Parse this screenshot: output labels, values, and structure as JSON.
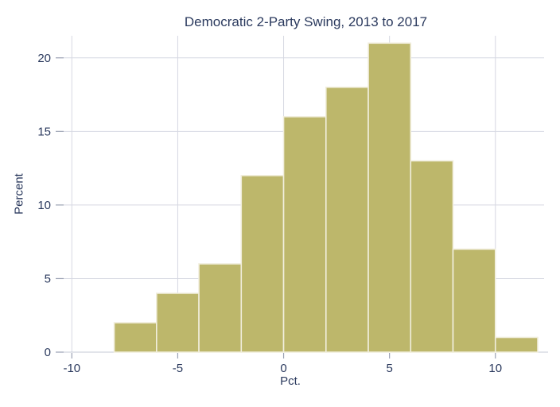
{
  "chart_data": {
    "type": "bar",
    "variant": "histogram",
    "title": "Democratic 2-Party Swing, 2013 to 2017",
    "xlabel": "Pct.",
    "ylabel": "Percent",
    "bin_width": 2,
    "bin_edges": [
      -8,
      -6,
      -4,
      -2,
      0,
      2,
      4,
      6,
      8,
      10,
      12
    ],
    "values": [
      2,
      4,
      6,
      12,
      16,
      18,
      21,
      13,
      7,
      1
    ],
    "x_ticks": [
      -10,
      -5,
      0,
      5,
      10
    ],
    "y_ticks": [
      0,
      5,
      10,
      15,
      20
    ],
    "xlim": [
      -10.2,
      12.3
    ],
    "ylim": [
      0,
      21.5
    ],
    "grid": true,
    "legend_position": "none",
    "colors": {
      "background": "#ffffff",
      "bar_fill": "#bdb76b",
      "bar_edge": "#f1eedd",
      "gridline": "#d6d8e2",
      "axis_line": "#c5c9d6",
      "tick": "#9aa1b3",
      "text": "#2b3a5e"
    }
  }
}
